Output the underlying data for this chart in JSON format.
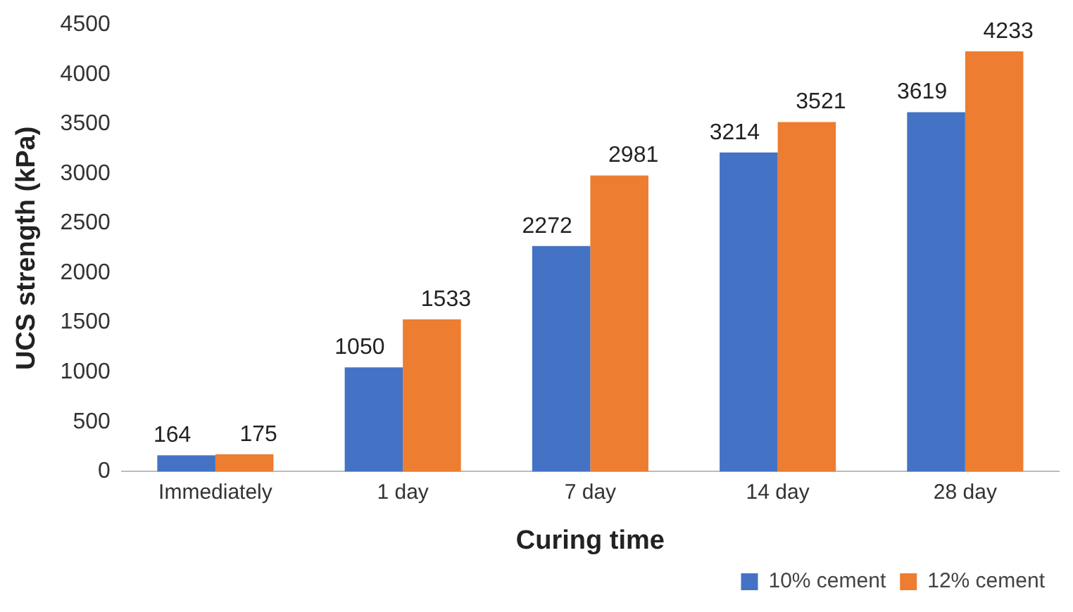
{
  "chart_data": {
    "type": "bar",
    "xlabel": "Curing time",
    "ylabel": "UCS strength (kPa)",
    "categories": [
      "Immediately",
      "1 day",
      "7 day",
      "14 day",
      "28 day"
    ],
    "series": [
      {
        "name": "10% cement",
        "color": "#4472c4",
        "values": [
          164,
          1050,
          2272,
          3214,
          3619
        ]
      },
      {
        "name": "12% cement",
        "color": "#ed7d31",
        "values": [
          175,
          1533,
          2981,
          3521,
          4233
        ]
      }
    ],
    "ylim": [
      0,
      4500
    ],
    "yticks": [
      0,
      500,
      1000,
      1500,
      2000,
      2500,
      3000,
      3500,
      4000,
      4500
    ],
    "grid": false,
    "legend": "bottom right",
    "data_labels": true
  }
}
